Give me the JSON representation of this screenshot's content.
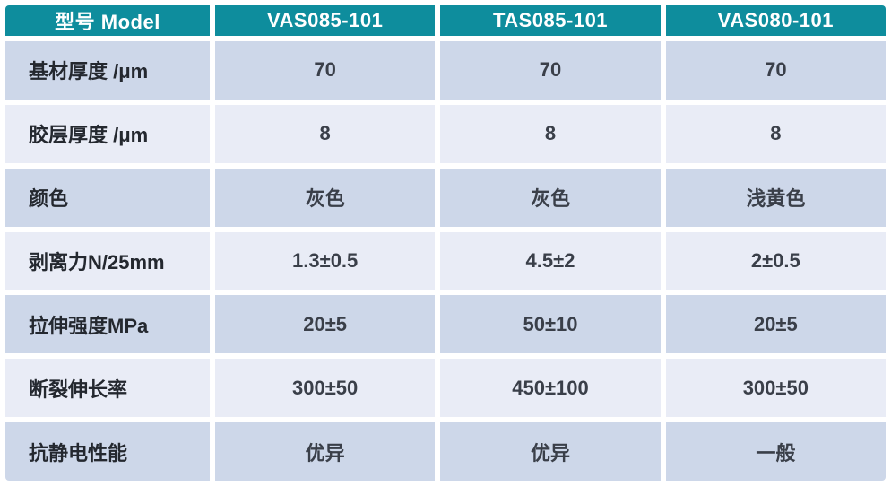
{
  "colors": {
    "header_bg": "#0e8d9d",
    "header_text": "#ffffff",
    "row_dark_bg": "#cdd7e9",
    "row_light_bg": "#e9ecf6",
    "gap": "#ffffff",
    "label_text": "#24282f",
    "value_text": "#3a3f49"
  },
  "table": {
    "header": [
      "型号 Model",
      "VAS085-101",
      "TAS085-101",
      "VAS080-101"
    ],
    "rows": [
      {
        "label": "基材厚度 /μm",
        "values": [
          "70",
          "70",
          "70"
        ]
      },
      {
        "label": "胶层厚度 /μm",
        "values": [
          "8",
          "8",
          "8"
        ]
      },
      {
        "label": "颜色",
        "values": [
          "灰色",
          "灰色",
          "浅黄色"
        ]
      },
      {
        "label": "剥离力N/25mm",
        "values": [
          "1.3±0.5",
          "4.5±2",
          "2±0.5"
        ]
      },
      {
        "label": "拉伸强度MPa",
        "values": [
          "20±5",
          "50±10",
          "20±5"
        ]
      },
      {
        "label": "断裂伸长率",
        "values": [
          "300±50",
          "450±100",
          "300±50"
        ]
      },
      {
        "label": "抗静电性能",
        "values": [
          "优异",
          "优异",
          "一般"
        ]
      }
    ]
  },
  "chart_data": {
    "type": "table",
    "title": "型号 Model",
    "columns": [
      "型号 Model",
      "VAS085-101",
      "TAS085-101",
      "VAS080-101"
    ],
    "rows": [
      [
        "基材厚度 /μm",
        "70",
        "70",
        "70"
      ],
      [
        "胶层厚度 /μm",
        "8",
        "8",
        "8"
      ],
      [
        "颜色",
        "灰色",
        "灰色",
        "浅黄色"
      ],
      [
        "剥离力N/25mm",
        "1.3±0.5",
        "4.5±2",
        "2±0.5"
      ],
      [
        "拉伸强度MPa",
        "20±5",
        "50±10",
        "20±5"
      ],
      [
        "断裂伸长率",
        "300±50",
        "450±100",
        "300±50"
      ],
      [
        "抗静电性能",
        "优异",
        "优异",
        "一般"
      ]
    ]
  }
}
